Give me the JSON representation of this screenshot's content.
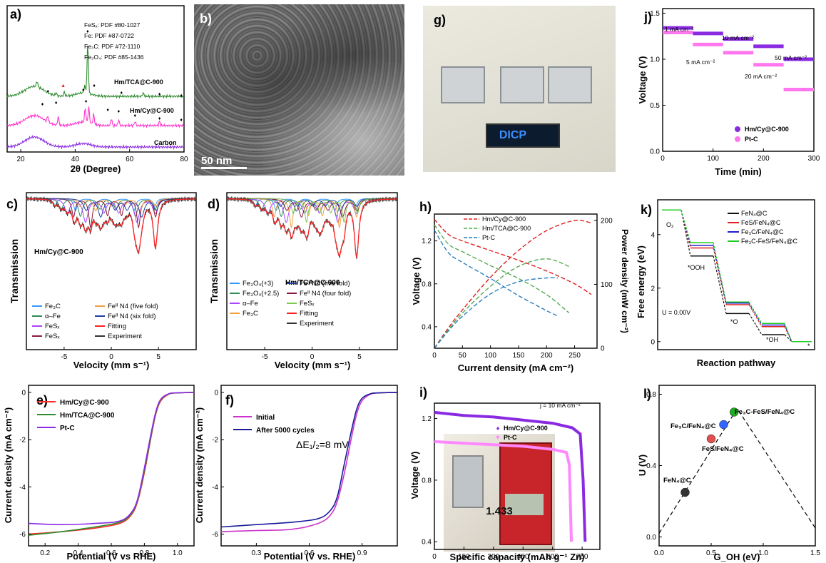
{
  "figure": {
    "panel_letters": [
      "a)",
      "b)",
      "c)",
      "d)",
      "e)",
      "f)",
      "g)",
      "h)",
      "i)",
      "j)",
      "k)",
      "l)"
    ],
    "tem_scale": "50 nm",
    "photo_display_text": "DICP",
    "multimeter_reading": "1.433"
  },
  "chart_data": [
    {
      "id": "a",
      "type": "line",
      "xlabel": "2θ (Degree)",
      "ylabel": "",
      "xlim": [
        15,
        80
      ],
      "xticks": [
        20,
        40,
        60,
        80
      ],
      "legend": [
        "FeSₓ: PDF #80-1027",
        "Fe: PDF #87-0722",
        "Fe₃C: PDF #72-1110",
        "Fe₃O₄: PDF #85-1436"
      ],
      "series": [
        {
          "name": "Hm/TCA@C-900",
          "color": "#2e8b2e"
        },
        {
          "name": "Hm/Cy@C-900",
          "color": "#ff33cc"
        },
        {
          "name": "Carbon",
          "color": "#8a2be2"
        }
      ]
    },
    {
      "id": "c",
      "type": "line",
      "xlabel": "Velocity (mm s⁻¹)",
      "ylabel": "Transmission",
      "xlim": [
        -9,
        9
      ],
      "xticks": [
        -5,
        0,
        5
      ],
      "annotation": "Hm/Cy@C-900",
      "series": [
        {
          "name": "Fe₃C",
          "color": "#3399ff"
        },
        {
          "name": "α–Fe",
          "color": "#2e8b57"
        },
        {
          "name": "FeSₓ",
          "color": "#aa44ff"
        },
        {
          "name": "FeSₓ",
          "color": "#8b1a3a"
        },
        {
          "name": "Feᴵᴵ N4 (five fold)",
          "color": "#f0a040"
        },
        {
          "name": "Feᴵᴵ N4 (six fold)",
          "color": "#1f3fa0"
        },
        {
          "name": "Fitting",
          "color": "#ff2222"
        },
        {
          "name": "Experiment",
          "color": "#333333"
        }
      ]
    },
    {
      "id": "d",
      "type": "line",
      "xlabel": "Velocity (mm s⁻¹)",
      "ylabel": "Transmission",
      "xlim": [
        -9,
        9
      ],
      "xticks": [
        -5,
        0,
        5
      ],
      "annotation": "Hm/TCA@C-900",
      "series": [
        {
          "name": "Fe₃O₄(+3)",
          "color": "#3399ff"
        },
        {
          "name": "Fe₃O₄(+2.5)",
          "color": "#2e8b57"
        },
        {
          "name": "α–Fe",
          "color": "#aa44ff"
        },
        {
          "name": "Fe₃C",
          "color": "#f0a040"
        },
        {
          "name": "Feᴵᴵ N4 (five fold)",
          "color": "#1f3fa0"
        },
        {
          "name": "Feᴵᴵ N4 (four fold)",
          "color": "#8b1a3a"
        },
        {
          "name": "FeSₓ",
          "color": "#7cc850"
        },
        {
          "name": "Fitting",
          "color": "#ff2222"
        },
        {
          "name": "Experiment",
          "color": "#333333"
        }
      ]
    },
    {
      "id": "e",
      "type": "line",
      "xlabel": "Potential (V vs RHE)",
      "ylabel": "Current density (mA cm⁻²)",
      "xlim": [
        0.1,
        1.1
      ],
      "ylim": [
        -6.5,
        0.3
      ],
      "xticks": [
        0.2,
        0.4,
        0.6,
        0.8,
        1.0
      ],
      "yticks": [
        0,
        -2,
        -4,
        -6
      ],
      "series": [
        {
          "name": "Hm/Cy@C-900",
          "color": "#ff2a2a",
          "x": [
            0.1,
            0.3,
            0.5,
            0.65,
            0.72,
            0.76,
            0.8,
            0.84,
            0.87,
            0.9,
            0.95,
            1.0,
            1.1
          ],
          "y": [
            -6.0,
            -5.9,
            -5.75,
            -5.55,
            -5.2,
            -4.6,
            -3.4,
            -1.9,
            -0.9,
            -0.35,
            -0.07,
            -0.02,
            0.0
          ]
        },
        {
          "name": "Hm/TCA@C-900",
          "color": "#2e8b2e",
          "x": [
            0.1,
            0.3,
            0.5,
            0.65,
            0.72,
            0.76,
            0.8,
            0.84,
            0.87,
            0.9,
            0.95,
            1.0,
            1.1
          ],
          "y": [
            -6.05,
            -5.9,
            -5.7,
            -5.5,
            -5.15,
            -4.55,
            -3.3,
            -1.85,
            -0.85,
            -0.3,
            -0.06,
            -0.02,
            0.0
          ]
        },
        {
          "name": "Pt-C",
          "color": "#8a2be2",
          "x": [
            0.1,
            0.3,
            0.5,
            0.65,
            0.72,
            0.76,
            0.8,
            0.84,
            0.87,
            0.9,
            0.95,
            1.0,
            1.1
          ],
          "y": [
            -5.55,
            -5.6,
            -5.55,
            -5.45,
            -5.1,
            -4.5,
            -3.2,
            -1.75,
            -0.8,
            -0.28,
            -0.05,
            -0.02,
            0.0
          ]
        }
      ]
    },
    {
      "id": "f",
      "type": "line",
      "xlabel": "Potential (V vs. RHE)",
      "ylabel": "Current density (mA cm⁻²)",
      "xlim": [
        0.1,
        1.1
      ],
      "ylim": [
        -6.5,
        0.3
      ],
      "xticks": [
        0.3,
        0.6,
        0.9
      ],
      "yticks": [
        0,
        -2,
        -4,
        -6
      ],
      "annotation": "ΔE₁/₂=8 mV",
      "series": [
        {
          "name": "Initial",
          "color": "#cc33cc",
          "x": [
            0.1,
            0.3,
            0.5,
            0.65,
            0.72,
            0.76,
            0.8,
            0.84,
            0.87,
            0.9,
            0.95,
            1.0,
            1.1
          ],
          "y": [
            -5.9,
            -5.85,
            -5.8,
            -5.55,
            -5.2,
            -4.6,
            -3.4,
            -1.9,
            -0.9,
            -0.35,
            -0.07,
            -0.02,
            0.0
          ]
        },
        {
          "name": "After 5000 cycles",
          "color": "#1a1a9a",
          "x": [
            0.1,
            0.3,
            0.5,
            0.65,
            0.72,
            0.76,
            0.8,
            0.84,
            0.87,
            0.9,
            0.95,
            1.0,
            1.1
          ],
          "y": [
            -5.7,
            -5.6,
            -5.5,
            -5.35,
            -5.0,
            -4.4,
            -3.0,
            -1.6,
            -0.7,
            -0.25,
            -0.05,
            -0.02,
            0.0
          ]
        }
      ]
    },
    {
      "id": "h",
      "type": "line",
      "xlabel": "Current density (mA cm⁻²)",
      "ylabel": "Voltage (V)",
      "y2label": "Power density (mW cm⁻²)",
      "xlim": [
        0,
        290
      ],
      "ylim": [
        0.2,
        1.45
      ],
      "y2lim": [
        0,
        210
      ],
      "xticks": [
        0,
        50,
        100,
        150,
        200,
        250
      ],
      "yticks": [
        0.4,
        0.8,
        1.2
      ],
      "y2ticks": [
        0,
        100,
        200
      ],
      "series": [
        {
          "name": "Hm/Cy@C-900",
          "color": "#e02020",
          "x": [
            0,
            25,
            50,
            100,
            150,
            200,
            250,
            280
          ],
          "voltage": [
            1.4,
            1.26,
            1.2,
            1.11,
            1.02,
            0.92,
            0.8,
            0.7
          ],
          "power": [
            0,
            32,
            60,
            111,
            153,
            184,
            200,
            196
          ]
        },
        {
          "name": "Hm/TCA@C-900",
          "color": "#55aa55",
          "x": [
            0,
            25,
            50,
            100,
            150,
            200,
            240
          ],
          "voltage": [
            1.35,
            1.17,
            1.1,
            0.97,
            0.85,
            0.7,
            0.53
          ],
          "power": [
            0,
            29,
            55,
            97,
            128,
            140,
            128
          ]
        },
        {
          "name": "Pt-C",
          "color": "#2a7fc0",
          "x": [
            0,
            25,
            50,
            100,
            150,
            200,
            220
          ],
          "voltage": [
            1.3,
            1.09,
            1.0,
            0.85,
            0.69,
            0.55,
            0.5
          ],
          "power": [
            0,
            27,
            50,
            85,
            104,
            110,
            110
          ]
        }
      ]
    },
    {
      "id": "i",
      "type": "line",
      "xlabel": "Specific capacity (mAh g⁻¹ Zn)",
      "ylabel": "Voltage (V)",
      "xlim": [
        0,
        840
      ],
      "ylim": [
        0.35,
        1.3
      ],
      "xticks": [
        0,
        150,
        300,
        450,
        600,
        750
      ],
      "yticks": [
        0.4,
        0.8,
        1.2
      ],
      "annotation": "j = 10 mA cm⁻²",
      "series": [
        {
          "name": "Hm/Cy@C-900",
          "color": "#8a2be2",
          "x": [
            0,
            150,
            300,
            450,
            600,
            700,
            740,
            755,
            765
          ],
          "y": [
            1.24,
            1.22,
            1.21,
            1.19,
            1.17,
            1.14,
            1.1,
            0.8,
            0.4
          ]
        },
        {
          "name": "Pt-C",
          "color": "#ff88ff",
          "x": [
            0,
            150,
            300,
            450,
            600,
            670,
            685,
            695
          ],
          "y": [
            1.05,
            1.04,
            1.03,
            1.02,
            1.0,
            0.98,
            0.9,
            0.4
          ]
        }
      ]
    },
    {
      "id": "j",
      "type": "line",
      "xlabel": "Time (min)",
      "ylabel": "Voltage (V)",
      "xlim": [
        0,
        300
      ],
      "ylim": [
        0,
        1.55
      ],
      "xticks": [
        0,
        100,
        200,
        300
      ],
      "yticks": [
        0.0,
        0.5,
        1.0,
        1.5
      ],
      "annotations": [
        "1 mA cm⁻²",
        "5 mA cm⁻²",
        "10 mA cm⁻²",
        "20 mA cm⁻²",
        "50 mA cm⁻²"
      ],
      "series": [
        {
          "name": "Hm/Cy@C-900",
          "color": "#8a2be2",
          "steps": [
            [
              0,
              60,
              1.34
            ],
            [
              60,
              120,
              1.28
            ],
            [
              120,
              180,
              1.22
            ],
            [
              180,
              240,
              1.14
            ],
            [
              240,
              300,
              1.0
            ]
          ]
        },
        {
          "name": "Pt-C",
          "color": "#ff77ee",
          "steps": [
            [
              0,
              60,
              1.29
            ],
            [
              60,
              120,
              1.16
            ],
            [
              120,
              180,
              1.07
            ],
            [
              180,
              240,
              0.94
            ],
            [
              240,
              300,
              0.67
            ]
          ]
        }
      ]
    },
    {
      "id": "k",
      "type": "line",
      "xlabel": "Reaction pathway",
      "ylabel": "Free energy (eV)",
      "ylim": [
        -0.3,
        5.3
      ],
      "yticks": [
        0,
        2,
        4
      ],
      "annotations": [
        "O₂",
        "*OOH",
        "*O",
        "*OH",
        "*",
        "U = 0.00V"
      ],
      "steps": [
        "O₂",
        "*OOH",
        "*O",
        "*OH",
        "*"
      ],
      "series": [
        {
          "name": "FeN₄@C",
          "color": "#111111",
          "values": [
            4.92,
            3.2,
            1.05,
            0.26,
            0.0
          ]
        },
        {
          "name": "FeS/FeN₄@C",
          "color": "#e02020",
          "values": [
            4.92,
            3.5,
            1.38,
            0.56,
            0.0
          ]
        },
        {
          "name": "Fe₃C/FeN₄@C",
          "color": "#2020cc",
          "values": [
            4.92,
            3.6,
            1.44,
            0.62,
            0.0
          ]
        },
        {
          "name": "Fe₃C-FeS/FeN₄@C",
          "color": "#22cc22",
          "values": [
            4.92,
            3.7,
            1.48,
            0.68,
            0.0
          ]
        }
      ]
    },
    {
      "id": "l",
      "type": "scatter",
      "xlabel": "G_OH (eV)",
      "ylabel": "U (V)",
      "xlim": [
        0,
        1.5
      ],
      "ylim": [
        -0.05,
        0.85
      ],
      "xticks": [
        0.0,
        0.5,
        1.0,
        1.5
      ],
      "yticks": [
        0.0,
        0.4,
        0.8
      ],
      "volcano": [
        [
          0,
          0.02
        ],
        [
          0.75,
          0.72
        ],
        [
          1.5,
          0.05
        ]
      ],
      "points": [
        {
          "label": "FeN₄@C",
          "x": 0.25,
          "y": 0.25,
          "color": "#333333"
        },
        {
          "label": "FeS/FeN₄@C",
          "x": 0.5,
          "y": 0.55,
          "color": "#e05050"
        },
        {
          "label": "Fe₃C/FeN₄@C",
          "x": 0.62,
          "y": 0.63,
          "color": "#3366ff"
        },
        {
          "label": "Fe₃C-FeS/FeN₄@C",
          "x": 0.72,
          "y": 0.7,
          "color": "#22aa22"
        }
      ]
    }
  ]
}
